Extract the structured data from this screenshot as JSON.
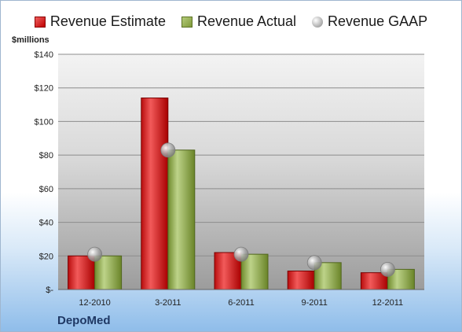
{
  "legend": {
    "estimate": "Revenue Estimate",
    "actual": "Revenue Actual",
    "gaap": "Revenue GAAP"
  },
  "unit_label": "$millions",
  "company": "DepoMed",
  "colors": {
    "estimate": "#d01f1f",
    "actual": "#8faa48",
    "gaap": "#b0b0b0"
  },
  "chart_data": {
    "type": "bar",
    "categories": [
      "12-2010",
      "3-2011",
      "6-2011",
      "9-2011",
      "12-2011"
    ],
    "series": [
      {
        "name": "Revenue Estimate",
        "values": [
          20,
          114,
          22,
          11,
          10
        ]
      },
      {
        "name": "Revenue Actual",
        "values": [
          20,
          83,
          21,
          16,
          12
        ]
      },
      {
        "name": "Revenue GAAP",
        "values": [
          21,
          83,
          21,
          16,
          12
        ]
      }
    ],
    "ylim": [
      0,
      140
    ],
    "yticks": [
      0,
      20,
      40,
      60,
      80,
      100,
      120,
      140
    ],
    "ytick_labels": [
      "$-",
      "$20",
      "$40",
      "$60",
      "$80",
      "$100",
      "$120",
      "$140"
    ],
    "grid": true,
    "legend_position": "top"
  }
}
